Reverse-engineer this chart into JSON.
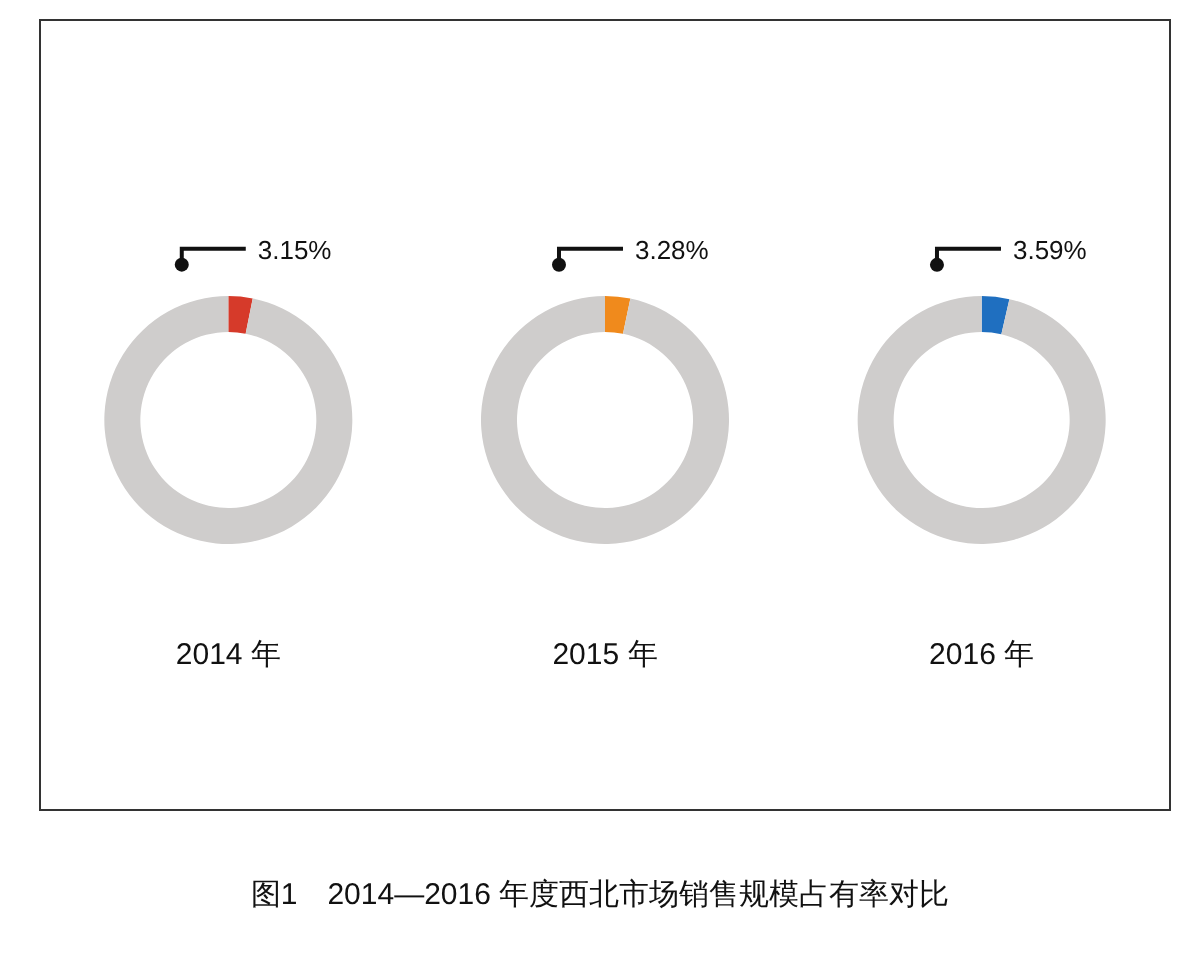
{
  "chart_data": [
    {
      "type": "donut",
      "xlabel": "2014 年",
      "categories": [
        null,
        null
      ],
      "values": [
        3.15,
        96.85
      ],
      "colors": [
        "#d63a2a",
        "#cfcdcc"
      ],
      "value_labels": [
        "3.15%",
        null
      ],
      "annotations": [
        "图1　2014—2016 年度西北市场销售规模占有率对比"
      ]
    },
    {
      "type": "donut",
      "xlabel": "2015 年",
      "categories": [
        null,
        null
      ],
      "values": [
        3.28,
        96.72
      ],
      "colors": [
        "#f08a1c",
        "#cfcdcc"
      ],
      "value_labels": [
        "3.28%",
        null
      ]
    },
    {
      "type": "donut",
      "xlabel": "2016 年",
      "categories": [
        null,
        null
      ],
      "values": [
        3.59,
        96.41
      ],
      "colors": [
        "#1f6fc0",
        "#cfcdcc"
      ],
      "value_labels": [
        "3.59%",
        null
      ]
    }
  ]
}
